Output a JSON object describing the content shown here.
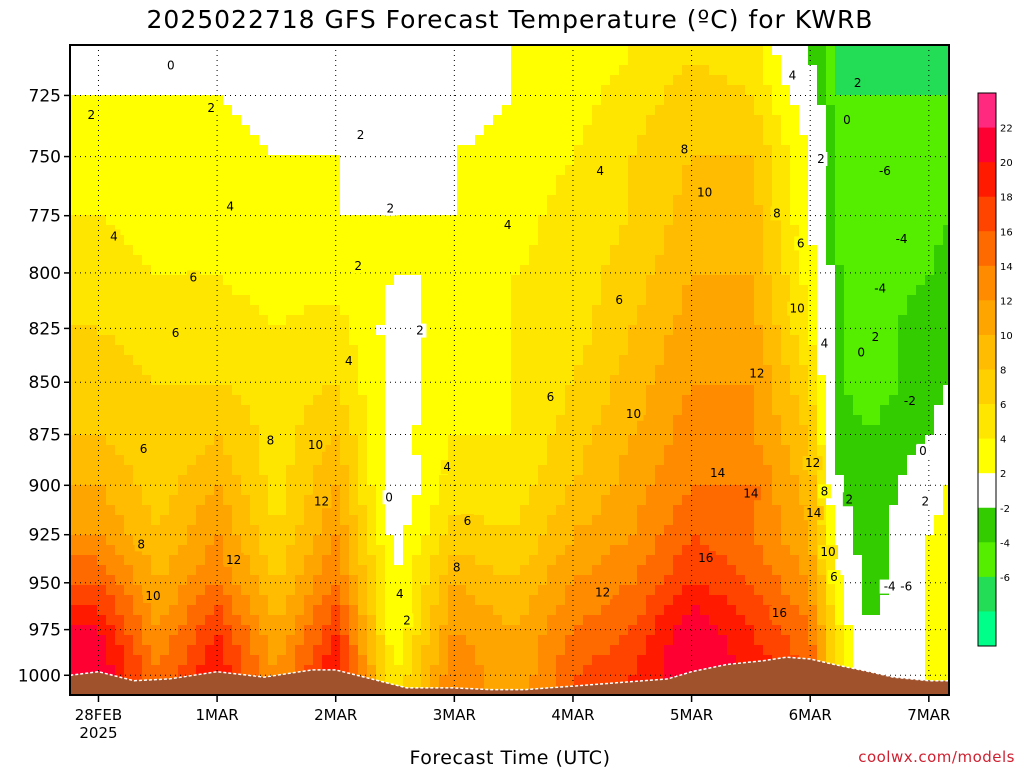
{
  "chart_data": {
    "type": "heatmap",
    "title": "2025022718 GFS Forecast Temperature (ºC) for KWRB",
    "xlabel": "Forecast Time (UTC)",
    "ylabel": "",
    "credit": "coolwx.com/models",
    "x_ticks": [
      {
        "label": "28FEB",
        "sublabel": "2025",
        "day": 0
      },
      {
        "label": "1MAR",
        "day": 1
      },
      {
        "label": "2MAR",
        "day": 2
      },
      {
        "label": "3MAR",
        "day": 3
      },
      {
        "label": "4MAR",
        "day": 4
      },
      {
        "label": "5MAR",
        "day": 5
      },
      {
        "label": "6MAR",
        "day": 6
      },
      {
        "label": "7MAR",
        "day": 7
      }
    ],
    "xlim": [
      -0.24,
      7.17
    ],
    "y_ticks": [
      725,
      750,
      775,
      800,
      825,
      850,
      875,
      900,
      925,
      950,
      975,
      1000
    ],
    "ylim": [
      1011,
      705
    ],
    "y_scale": "log",
    "grid": true,
    "colorbar": {
      "ticks": [
        22,
        20,
        18,
        16,
        14,
        12,
        10,
        8,
        6,
        4,
        2,
        -2,
        -4,
        -6
      ],
      "colors": [
        "#ff2a80",
        "#ff0033",
        "#ff1a00",
        "#ff4400",
        "#ff6a00",
        "#ff8c00",
        "#ffa500",
        "#ffbc00",
        "#ffd000",
        "#ffe600",
        "#ffff00",
        "#ffffff",
        "#33cc00",
        "#55ee00",
        "#22dd55",
        "#00ff88"
      ]
    },
    "temperature_time_series": {
      "times_day": [
        -0.24,
        0.0,
        0.5,
        1.0,
        1.5,
        2.0,
        2.5,
        3.0,
        3.5,
        4.0,
        4.5,
        5.0,
        5.5,
        6.0,
        6.25,
        6.5,
        7.0,
        7.17
      ],
      "levels_hPa": [
        1000,
        975,
        950,
        925,
        900,
        875,
        850,
        825,
        800,
        775,
        750,
        725,
        710
      ],
      "temps_C": [
        [
          22,
          22,
          14,
          20,
          12,
          20,
          4,
          14,
          10,
          16,
          18,
          22,
          20,
          16,
          4,
          0,
          2,
          2
        ],
        [
          20,
          20,
          12,
          18,
          10,
          18,
          2,
          12,
          10,
          14,
          16,
          22,
          18,
          14,
          4,
          -2,
          2,
          2
        ],
        [
          16,
          16,
          10,
          14,
          8,
          14,
          2,
          10,
          8,
          12,
          14,
          18,
          16,
          12,
          2,
          -4,
          2,
          2
        ],
        [
          12,
          12,
          8,
          12,
          6,
          12,
          1,
          7,
          6,
          10,
          12,
          16,
          14,
          10,
          0,
          -4,
          2,
          4
        ],
        [
          10,
          10,
          7,
          10,
          5,
          10,
          0,
          5,
          5,
          8,
          11,
          14,
          14,
          9,
          -2,
          -4,
          0,
          2
        ],
        [
          8,
          8,
          6,
          8,
          5,
          8,
          1,
          4,
          4,
          7,
          10,
          13,
          12,
          8,
          -3,
          -4,
          -2,
          0
        ],
        [
          7,
          7,
          6,
          6,
          5,
          6,
          1,
          3,
          4,
          6,
          9,
          12,
          12,
          6,
          -4,
          -5,
          -3,
          -2
        ],
        [
          6,
          6,
          5,
          5,
          4,
          5,
          1,
          3,
          4,
          5,
          8,
          11,
          11,
          4,
          -4,
          -5,
          -3,
          -2
        ],
        [
          5,
          5,
          4,
          4,
          3,
          3,
          2,
          2,
          4,
          5,
          7,
          10,
          10,
          3,
          -4,
          -5,
          -4,
          -3
        ],
        [
          4,
          4,
          3,
          4,
          3,
          2,
          2,
          2,
          3,
          5,
          6,
          9,
          9,
          2,
          -5,
          -5,
          -5,
          -4
        ],
        [
          3,
          3,
          3,
          3,
          2,
          2,
          1,
          2,
          3,
          4,
          6,
          8,
          8,
          2,
          -6,
          -6,
          -6,
          -5
        ],
        [
          2,
          2,
          2,
          2,
          1,
          1,
          0,
          1,
          2,
          3,
          5,
          7,
          6,
          0,
          -6,
          -6,
          -6,
          -6
        ],
        [
          1,
          1,
          1,
          1,
          0,
          0,
          -1,
          0,
          2,
          3,
          4,
          6,
          5,
          -2,
          -7,
          -7,
          -7,
          -7
        ]
      ]
    },
    "contour_labels": [
      {
        "text": "0",
        "day": 0.61,
        "p": 713
      },
      {
        "text": "2",
        "day": -0.06,
        "p": 733
      },
      {
        "text": "2",
        "day": 0.95,
        "p": 730
      },
      {
        "text": "4",
        "day": 0.13,
        "p": 784
      },
      {
        "text": "4",
        "day": 1.11,
        "p": 771
      },
      {
        "text": "6",
        "day": 0.8,
        "p": 802
      },
      {
        "text": "6",
        "day": 0.65,
        "p": 827
      },
      {
        "text": "6",
        "day": 0.38,
        "p": 882
      },
      {
        "text": "8",
        "day": 0.36,
        "p": 930
      },
      {
        "text": "10",
        "day": 0.46,
        "p": 957
      },
      {
        "text": "8",
        "day": 1.45,
        "p": 878
      },
      {
        "text": "10",
        "day": 1.83,
        "p": 880
      },
      {
        "text": "12",
        "day": 1.14,
        "p": 938
      },
      {
        "text": "12",
        "day": 1.88,
        "p": 908
      },
      {
        "text": "2",
        "day": 2.21,
        "p": 741
      },
      {
        "text": "2",
        "day": 2.46,
        "p": 772
      },
      {
        "text": "2",
        "day": 2.19,
        "p": 797
      },
      {
        "text": "4",
        "day": 2.11,
        "p": 840
      },
      {
        "text": "2",
        "day": 2.71,
        "p": 826
      },
      {
        "text": "0",
        "day": 2.45,
        "p": 906
      },
      {
        "text": "4",
        "day": 2.54,
        "p": 956
      },
      {
        "text": "2",
        "day": 2.6,
        "p": 970
      },
      {
        "text": "4",
        "day": 2.94,
        "p": 891
      },
      {
        "text": "6",
        "day": 3.11,
        "p": 918
      },
      {
        "text": "8",
        "day": 3.02,
        "p": 942
      },
      {
        "text": "4",
        "day": 3.45,
        "p": 779
      },
      {
        "text": "4",
        "day": 4.23,
        "p": 756
      },
      {
        "text": "6",
        "day": 4.39,
        "p": 812
      },
      {
        "text": "6",
        "day": 3.81,
        "p": 857
      },
      {
        "text": "10",
        "day": 4.51,
        "p": 865
      },
      {
        "text": "12",
        "day": 4.25,
        "p": 955
      },
      {
        "text": "8",
        "day": 4.94,
        "p": 747
      },
      {
        "text": "10",
        "day": 5.11,
        "p": 765
      },
      {
        "text": "8",
        "day": 5.72,
        "p": 774
      },
      {
        "text": "6",
        "day": 5.92,
        "p": 787
      },
      {
        "text": "10",
        "day": 5.89,
        "p": 816
      },
      {
        "text": "12",
        "day": 5.55,
        "p": 846
      },
      {
        "text": "14",
        "day": 5.22,
        "p": 894
      },
      {
        "text": "14",
        "day": 5.5,
        "p": 904
      },
      {
        "text": "16",
        "day": 5.12,
        "p": 937
      },
      {
        "text": "16",
        "day": 5.74,
        "p": 966
      },
      {
        "text": "12",
        "day": 6.02,
        "p": 889
      },
      {
        "text": "8",
        "day": 6.12,
        "p": 903
      },
      {
        "text": "14",
        "day": 6.03,
        "p": 914
      },
      {
        "text": "10",
        "day": 6.15,
        "p": 934
      },
      {
        "text": "6",
        "day": 6.2,
        "p": 947
      },
      {
        "text": "2",
        "day": 6.33,
        "p": 907
      },
      {
        "text": "4",
        "day": 6.12,
        "p": 832
      },
      {
        "text": "4",
        "day": 5.85,
        "p": 717
      },
      {
        "text": "2",
        "day": 6.09,
        "p": 751
      },
      {
        "text": "0",
        "day": 6.31,
        "p": 735
      },
      {
        "text": "2",
        "day": 6.4,
        "p": 720
      },
      {
        "text": "2",
        "day": 6.55,
        "p": 829
      },
      {
        "text": "0",
        "day": 6.43,
        "p": 836
      },
      {
        "text": "-6",
        "day": 6.63,
        "p": 756
      },
      {
        "text": "-4",
        "day": 6.77,
        "p": 785
      },
      {
        "text": "-4",
        "day": 6.59,
        "p": 807
      },
      {
        "text": "-2",
        "day": 6.84,
        "p": 859
      },
      {
        "text": "0",
        "day": 6.95,
        "p": 883
      },
      {
        "text": "2",
        "day": 6.97,
        "p": 908
      },
      {
        "text": "-4",
        "day": 6.67,
        "p": 952
      },
      {
        "text": "-6",
        "day": 6.81,
        "p": 952
      }
    ],
    "surface_pressure": {
      "days": [
        -0.24,
        0.0,
        0.3,
        0.6,
        1.0,
        1.4,
        1.8,
        2.0,
        2.3,
        2.6,
        3.0,
        3.3,
        3.6,
        4.0,
        4.4,
        4.8,
        5.0,
        5.3,
        5.6,
        5.8,
        6.0,
        6.2,
        6.5,
        6.7,
        7.0,
        7.17
      ],
      "p": [
        1000,
        998,
        1003,
        1002,
        998,
        1001,
        997,
        997,
        1002,
        1007,
        1007,
        1008,
        1008,
        1006,
        1004,
        1002,
        998,
        994,
        992,
        990,
        991,
        994,
        998,
        1001,
        1003,
        1003
      ]
    }
  }
}
